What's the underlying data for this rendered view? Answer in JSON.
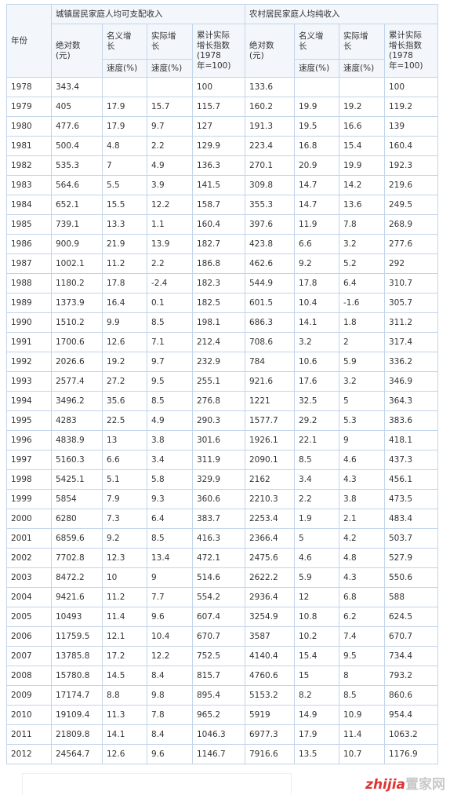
{
  "header": {
    "year": "年份",
    "urban": "城镇居民家庭人均可支配收入",
    "rural": "农村居民家庭人均纯收入",
    "sub": [
      "绝对数\n(元)",
      "名义增\n长",
      "实际增\n长",
      "累计实际\n增长指数\n(1978\n年=100)"
    ],
    "rate": "速度(%)"
  },
  "table": {
    "rows": [
      [
        "1978",
        "343.4",
        null,
        null,
        "100",
        "133.6",
        null,
        null,
        "100"
      ],
      [
        "1979",
        "405",
        "17.9",
        "15.7",
        "115.7",
        "160.2",
        "19.9",
        "19.2",
        "119.2"
      ],
      [
        "1980",
        "477.6",
        "17.9",
        "9.7",
        "127",
        "191.3",
        "19.5",
        "16.6",
        "139"
      ],
      [
        "1981",
        "500.4",
        "4.8",
        "2.2",
        "129.9",
        "223.4",
        "16.8",
        "15.4",
        "160.4"
      ],
      [
        "1982",
        "535.3",
        "7",
        "4.9",
        "136.3",
        "270.1",
        "20.9",
        "19.9",
        "192.3"
      ],
      [
        "1983",
        "564.6",
        "5.5",
        "3.9",
        "141.5",
        "309.8",
        "14.7",
        "14.2",
        "219.6"
      ],
      [
        "1984",
        "652.1",
        "15.5",
        "12.2",
        "158.7",
        "355.3",
        "14.7",
        "13.6",
        "249.5"
      ],
      [
        "1985",
        "739.1",
        "13.3",
        "1.1",
        "160.4",
        "397.6",
        "11.9",
        "7.8",
        "268.9"
      ],
      [
        "1986",
        "900.9",
        "21.9",
        "13.9",
        "182.7",
        "423.8",
        "6.6",
        "3.2",
        "277.6"
      ],
      [
        "1987",
        "1002.1",
        "11.2",
        "2.2",
        "186.8",
        "462.6",
        "9.2",
        "5.2",
        "292"
      ],
      [
        "1988",
        "1180.2",
        "17.8",
        "-2.4",
        "182.3",
        "544.9",
        "17.8",
        "6.4",
        "310.7"
      ],
      [
        "1989",
        "1373.9",
        "16.4",
        "0.1",
        "182.5",
        "601.5",
        "10.4",
        "-1.6",
        "305.7"
      ],
      [
        "1990",
        "1510.2",
        "9.9",
        "8.5",
        "198.1",
        "686.3",
        "14.1",
        "1.8",
        "311.2"
      ],
      [
        "1991",
        "1700.6",
        "12.6",
        "7.1",
        "212.4",
        "708.6",
        "3.2",
        "2",
        "317.4"
      ],
      [
        "1992",
        "2026.6",
        "19.2",
        "9.7",
        "232.9",
        "784",
        "10.6",
        "5.9",
        "336.2"
      ],
      [
        "1993",
        "2577.4",
        "27.2",
        "9.5",
        "255.1",
        "921.6",
        "17.6",
        "3.2",
        "346.9"
      ],
      [
        "1994",
        "3496.2",
        "35.6",
        "8.5",
        "276.8",
        "1221",
        "32.5",
        "5",
        "364.3"
      ],
      [
        "1995",
        "4283",
        "22.5",
        "4.9",
        "290.3",
        "1577.7",
        "29.2",
        "5.3",
        "383.6"
      ],
      [
        "1996",
        "4838.9",
        "13",
        "3.8",
        "301.6",
        "1926.1",
        "22.1",
        "9",
        "418.1"
      ],
      [
        "1997",
        "5160.3",
        "6.6",
        "3.4",
        "311.9",
        "2090.1",
        "8.5",
        "4.6",
        "437.3"
      ],
      [
        "1998",
        "5425.1",
        "5.1",
        "5.8",
        "329.9",
        "2162",
        "3.4",
        "4.3",
        "456.1"
      ],
      [
        "1999",
        "5854",
        "7.9",
        "9.3",
        "360.6",
        "2210.3",
        "2.2",
        "3.8",
        "473.5"
      ],
      [
        "2000",
        "6280",
        "7.3",
        "6.4",
        "383.7",
        "2253.4",
        "1.9",
        "2.1",
        "483.4"
      ],
      [
        "2001",
        "6859.6",
        "9.2",
        "8.5",
        "416.3",
        "2366.4",
        "5",
        "4.2",
        "503.7"
      ],
      [
        "2002",
        "7702.8",
        "12.3",
        "13.4",
        "472.1",
        "2475.6",
        "4.6",
        "4.8",
        "527.9"
      ],
      [
        "2003",
        "8472.2",
        "10",
        "9",
        "514.6",
        "2622.2",
        "5.9",
        "4.3",
        "550.6"
      ],
      [
        "2004",
        "9421.6",
        "11.2",
        "7.7",
        "554.2",
        "2936.4",
        "12",
        "6.8",
        "588"
      ],
      [
        "2005",
        "10493",
        "11.4",
        "9.6",
        "607.4",
        "3254.9",
        "10.8",
        "6.2",
        "624.5"
      ],
      [
        "2006",
        "11759.5",
        "12.1",
        "10.4",
        "670.7",
        "3587",
        "10.2",
        "7.4",
        "670.7"
      ],
      [
        "2007",
        "13785.8",
        "17.2",
        "12.2",
        "752.5",
        "4140.4",
        "15.4",
        "9.5",
        "734.4"
      ],
      [
        "2008",
        "15780.8",
        "14.5",
        "8.4",
        "815.7",
        "4760.6",
        "15",
        "8",
        "793.2"
      ],
      [
        "2009",
        "17174.7",
        "8.8",
        "9.8",
        "895.4",
        "5153.2",
        "8.2",
        "8.5",
        "860.6"
      ],
      [
        "2010",
        "19109.4",
        "11.3",
        "7.8",
        "965.2",
        "5919",
        "14.9",
        "10.9",
        "954.4"
      ],
      [
        "2011",
        "21809.8",
        "14.1",
        "8.4",
        "1046.3",
        "6977.3",
        "17.9",
        "11.4",
        "1063.2"
      ],
      [
        "2012",
        "24564.7",
        "12.6",
        "9.6",
        "1146.7",
        "7916.6",
        "13.5",
        "10.7",
        "1176.9"
      ]
    ]
  },
  "logo": {
    "latin": "zhijia",
    "cjk": "置家网"
  }
}
